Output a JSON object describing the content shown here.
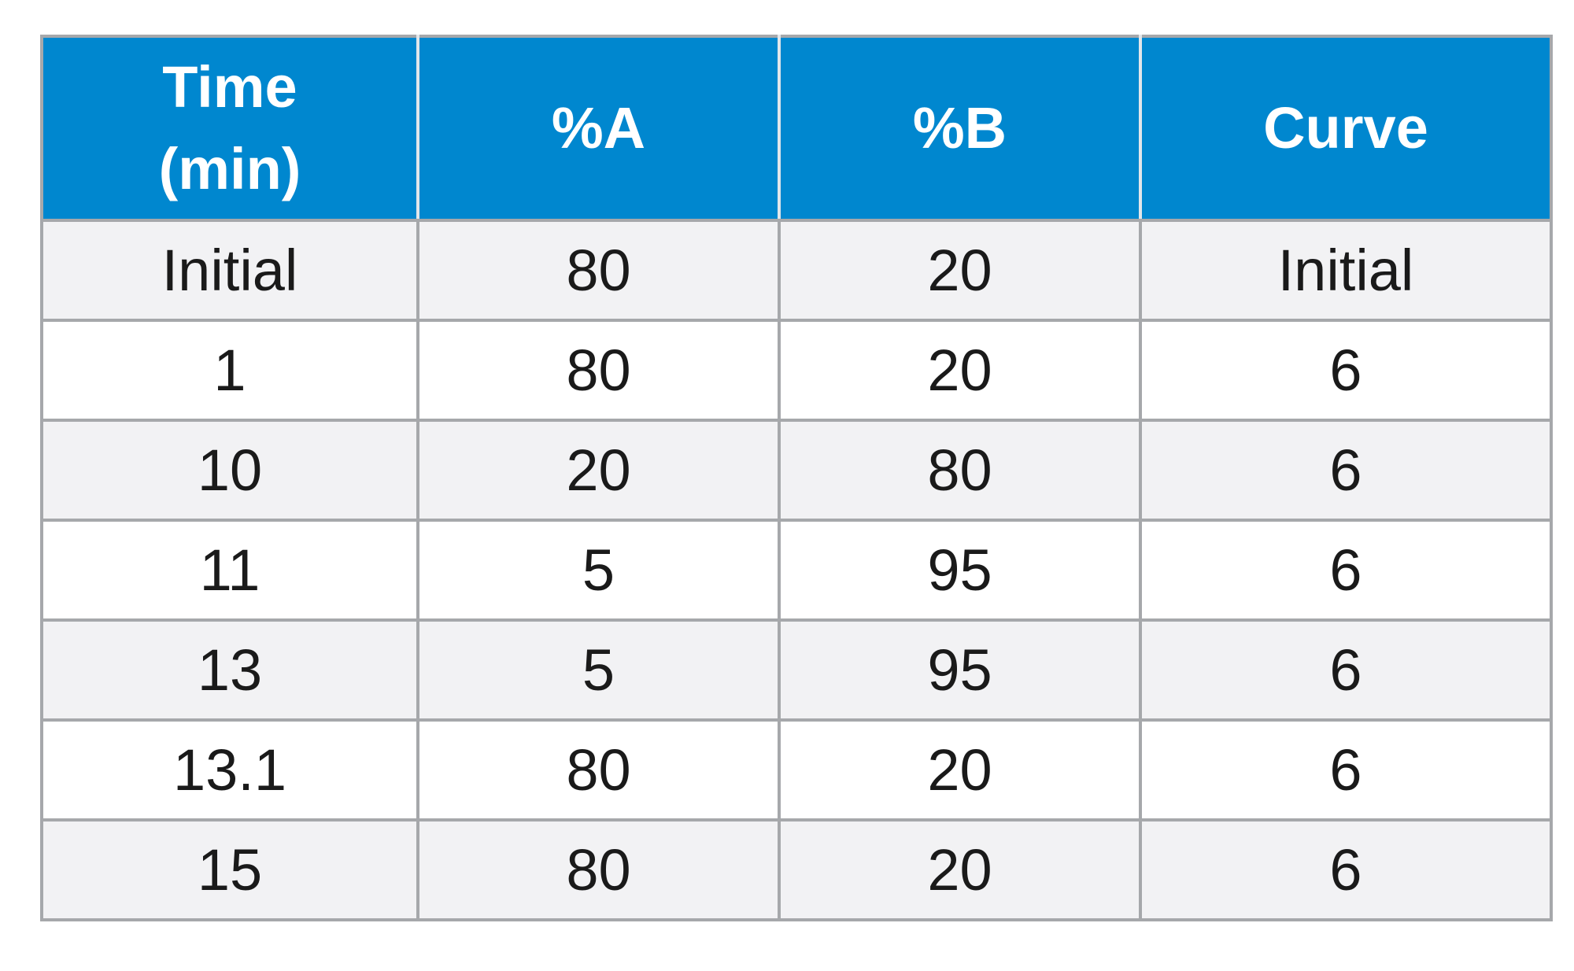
{
  "table": {
    "header": {
      "time_line1": "Time",
      "time_line2": "(min)",
      "a": "%A",
      "b": "%B",
      "curve": "Curve"
    },
    "rows": [
      {
        "time": "Initial",
        "a": "80",
        "b": "20",
        "curve": "Initial"
      },
      {
        "time": "1",
        "a": "80",
        "b": "20",
        "curve": "6"
      },
      {
        "time": "10",
        "a": "20",
        "b": "80",
        "curve": "6"
      },
      {
        "time": "11",
        "a": "5",
        "b": "95",
        "curve": "6"
      },
      {
        "time": "13",
        "a": "5",
        "b": "95",
        "curve": "6"
      },
      {
        "time": "13.1",
        "a": "80",
        "b": "20",
        "curve": "6"
      },
      {
        "time": "15",
        "a": "80",
        "b": "20",
        "curve": "6"
      }
    ],
    "colors": {
      "header_background": "#0087cf",
      "header_text": "#ffffff",
      "row_shaded": "#f2f2f4",
      "row_plain": "#ffffff",
      "grid": "#a6a8ab"
    }
  }
}
